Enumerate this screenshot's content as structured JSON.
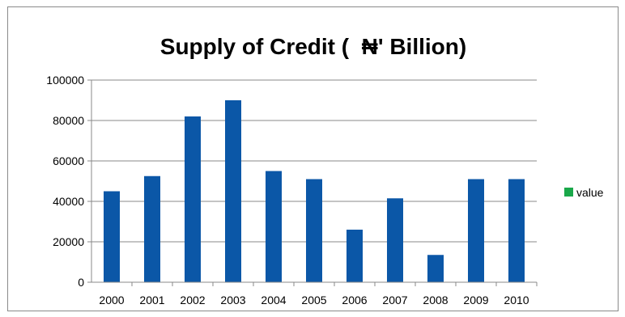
{
  "chart_data": {
    "type": "bar",
    "title": "Supply of Credit (  ₦' Billion)",
    "xlabel": "",
    "ylabel": "",
    "categories": [
      "2000",
      "2001",
      "2002",
      "2003",
      "2004",
      "2005",
      "2006",
      "2007",
      "2008",
      "2009",
      "2010"
    ],
    "series": [
      {
        "name": "value",
        "values": [
          45000,
          52500,
          82000,
          90000,
          55000,
          51000,
          26000,
          41500,
          13500,
          51000,
          51000
        ]
      }
    ],
    "ylim": [
      0,
      100000
    ],
    "yticks": [
      "0",
      "20000",
      "40000",
      "60000",
      "80000",
      "100000"
    ],
    "grid": true,
    "legend": {
      "placement": "right",
      "label": "value",
      "swatch_color": "#1aa84a"
    },
    "bar_color": "#0b57a7",
    "gridline_color": "#888888"
  }
}
